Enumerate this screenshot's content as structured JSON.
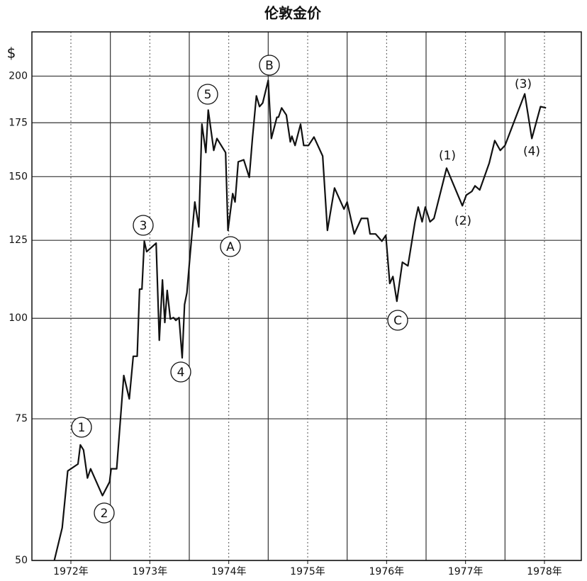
{
  "chart_data": {
    "type": "line",
    "title": "伦敦金价",
    "y_label": "$",
    "x": [
      1971.79,
      1971.89,
      1971.96,
      1972.09,
      1972.12,
      1972.16,
      1972.21,
      1972.25,
      1972.4,
      1972.49,
      1972.51,
      1972.58,
      1972.67,
      1972.74,
      1972.79,
      1972.84,
      1972.87,
      1972.9,
      1972.93,
      1972.96,
      1973.08,
      1973.12,
      1973.16,
      1973.19,
      1973.22,
      1973.26,
      1973.3,
      1973.33,
      1973.37,
      1973.41,
      1973.44,
      1973.47,
      1973.51,
      1973.57,
      1973.62,
      1973.66,
      1973.71,
      1973.74,
      1973.81,
      1973.85,
      1973.96,
      1973.99,
      1974.05,
      1974.08,
      1974.12,
      1974.19,
      1974.26,
      1974.3,
      1974.35,
      1974.39,
      1974.43,
      1974.5,
      1974.54,
      1974.61,
      1974.63,
      1974.67,
      1974.73,
      1974.78,
      1974.8,
      1974.84,
      1974.91,
      1974.95,
      1975.01,
      1975.08,
      1975.19,
      1975.25,
      1975.34,
      1975.46,
      1975.5,
      1975.59,
      1975.68,
      1975.76,
      1975.79,
      1975.86,
      1975.94,
      1975.99,
      1976.04,
      1976.08,
      1976.13,
      1976.2,
      1976.27,
      1976.36,
      1976.4,
      1976.45,
      1976.49,
      1976.55,
      1976.6,
      1976.76,
      1976.96,
      1977.01,
      1977.08,
      1977.12,
      1977.18,
      1977.3,
      1977.37,
      1977.44,
      1977.5,
      1977.75,
      1977.84,
      1977.95,
      1978.02
    ],
    "series": [
      {
        "name": "伦敦金价",
        "color": "#111111",
        "values": [
          50,
          54.9,
          64.6,
          65.9,
          69.6,
          68.6,
          63.3,
          65.0,
          60.2,
          62.6,
          65.0,
          65.0,
          84.9,
          79.4,
          89.7,
          89.7,
          108.7,
          108.7,
          124.7,
          121.0,
          124.0,
          93.9,
          111.6,
          98.8,
          108.3,
          99.8,
          100.2,
          99.4,
          100.2,
          89.3,
          104.0,
          107.6,
          119.8,
          139.5,
          129.9,
          174.3,
          160.7,
          181.5,
          161.7,
          167.3,
          160.7,
          128.6,
          142.9,
          139.5,
          156.5,
          157.4,
          149.7,
          167.3,
          189.0,
          183.3,
          185.2,
          197.6,
          167.3,
          177.8,
          177.8,
          182.6,
          178.9,
          165.7,
          168.4,
          164.0,
          174.3,
          164.0,
          164.0,
          168.0,
          159.1,
          128.6,
          145.2,
          136.7,
          139.5,
          127.3,
          133.1,
          133.1,
          127.3,
          127.3,
          124.7,
          126.8,
          110.5,
          112.7,
          105.0,
          117.4,
          116.2,
          131.8,
          137.5,
          131.8,
          137.5,
          131.8,
          133.1,
          153.7,
          138.0,
          142.3,
          143.8,
          146.1,
          144.4,
          155.9,
          166.3,
          161.7,
          164.0,
          190.1,
          167.3,
          183.3,
          182.6
        ]
      }
    ],
    "xlim": [
      1971.506,
      1978.467
    ],
    "xticks": [
      {
        "value": 1972,
        "label": "1972年"
      },
      {
        "value": 1973,
        "label": "1973年"
      },
      {
        "value": 1974,
        "label": "1974年"
      },
      {
        "value": 1975,
        "label": "1975年"
      },
      {
        "value": 1976,
        "label": "1976年"
      },
      {
        "value": 1977,
        "label": "1977年"
      },
      {
        "value": 1978,
        "label": "1978年"
      }
    ],
    "minor_xticks": [
      1972.5,
      1973.5,
      1974.5,
      1975.5,
      1976.5,
      1977.5
    ],
    "ylim": [
      50,
      227
    ],
    "yticks": [
      50,
      75,
      100,
      125,
      150,
      175,
      200
    ],
    "log_y": true,
    "grid": true,
    "annotations": [
      {
        "text": "1",
        "circled": true
      },
      {
        "text": "2",
        "circled": true
      },
      {
        "text": "3",
        "circled": true
      },
      {
        "text": "4",
        "circled": true
      },
      {
        "text": "5",
        "circled": true
      },
      {
        "text": "A",
        "circled": true
      },
      {
        "text": "B",
        "circled": true
      },
      {
        "text": "C",
        "circled": true
      },
      {
        "text": "(1)",
        "circled": false
      },
      {
        "text": "(2)",
        "circled": false
      },
      {
        "text": "(3)",
        "circled": false
      },
      {
        "text": "(4)",
        "circled": false
      }
    ]
  }
}
